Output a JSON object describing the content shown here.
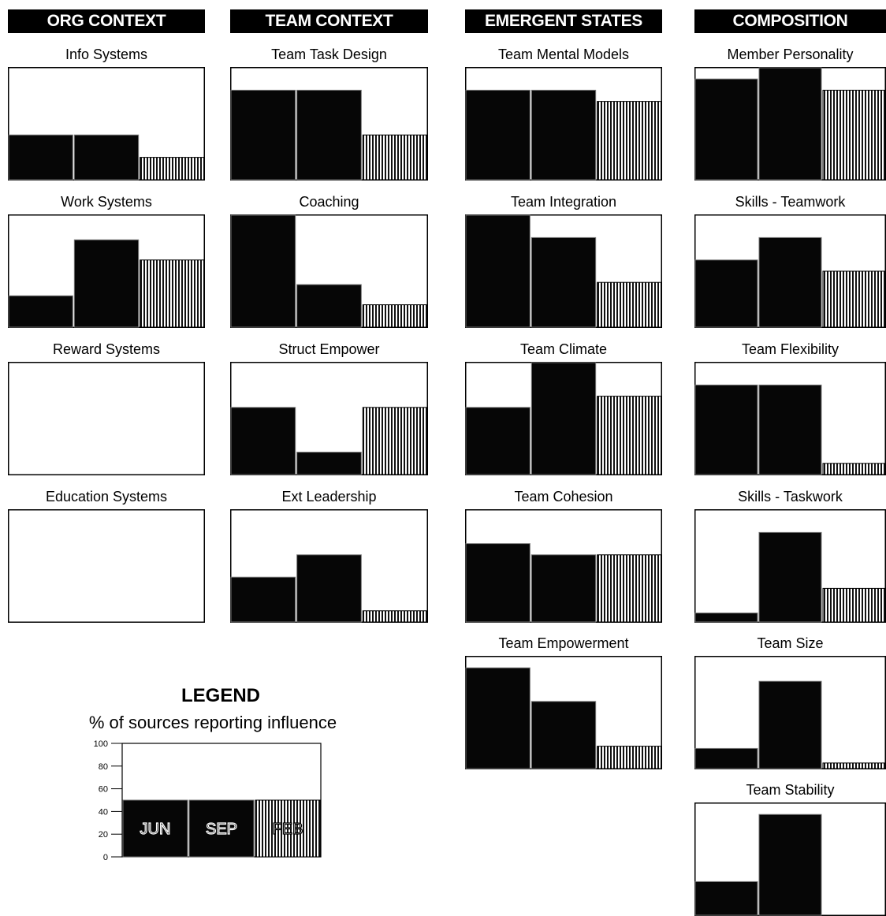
{
  "headers": [
    "ORG CONTEXT",
    "TEAM CONTEXT",
    "EMERGENT STATES",
    "COMPOSITION"
  ],
  "legend": {
    "title": "LEGEND",
    "subtitle": "% of sources reporting influence",
    "y_ticks": [
      "100",
      "80",
      "60",
      "40",
      "20",
      "0"
    ],
    "bar_labels": [
      "JUN",
      "SEP",
      "FEB"
    ]
  },
  "chart_data": {
    "type": "bar",
    "categories": [
      "JUN",
      "SEP",
      "FEB"
    ],
    "ylim": [
      0,
      100
    ],
    "panels": [
      {
        "group": "ORG CONTEXT",
        "title": "Info Systems",
        "values": [
          40,
          40,
          20
        ]
      },
      {
        "group": "ORG CONTEXT",
        "title": "Work Systems",
        "values": [
          28,
          78,
          60
        ]
      },
      {
        "group": "ORG CONTEXT",
        "title": "Reward Systems",
        "values": [
          0,
          0,
          0
        ]
      },
      {
        "group": "ORG CONTEXT",
        "title": "Education Systems",
        "values": [
          0,
          0,
          0
        ]
      },
      {
        "group": "TEAM CONTEXT",
        "title": "Team Task Design",
        "values": [
          80,
          80,
          40
        ]
      },
      {
        "group": "TEAM CONTEXT",
        "title": "Coaching",
        "values": [
          100,
          38,
          20
        ]
      },
      {
        "group": "TEAM CONTEXT",
        "title": "Struct Empower",
        "values": [
          60,
          20,
          60
        ]
      },
      {
        "group": "TEAM CONTEXT",
        "title": "Ext Leadership",
        "values": [
          40,
          60,
          10
        ]
      },
      {
        "group": "EMERGENT STATES",
        "title": "Team Mental Models",
        "values": [
          80,
          80,
          70
        ]
      },
      {
        "group": "EMERGENT STATES",
        "title": "Team Integration",
        "values": [
          100,
          80,
          40
        ]
      },
      {
        "group": "EMERGENT STATES",
        "title": "Team Climate",
        "values": [
          60,
          100,
          70
        ]
      },
      {
        "group": "EMERGENT STATES",
        "title": "Team Cohesion",
        "values": [
          70,
          60,
          60
        ]
      },
      {
        "group": "EMERGENT STATES",
        "title": "Team Empowerment",
        "values": [
          90,
          60,
          20
        ]
      },
      {
        "group": "COMPOSITION",
        "title": "Member Personality",
        "values": [
          90,
          100,
          80
        ]
      },
      {
        "group": "COMPOSITION",
        "title": "Skills - Teamwork",
        "values": [
          60,
          80,
          50
        ]
      },
      {
        "group": "COMPOSITION",
        "title": "Team Flexibility",
        "values": [
          80,
          80,
          10
        ]
      },
      {
        "group": "COMPOSITION",
        "title": "Skills - Taskwork",
        "values": [
          8,
          80,
          30
        ]
      },
      {
        "group": "COMPOSITION",
        "title": "Team Size",
        "values": [
          18,
          78,
          5
        ]
      },
      {
        "group": "COMPOSITION",
        "title": "Team Stability",
        "values": [
          30,
          90,
          0
        ]
      }
    ]
  }
}
